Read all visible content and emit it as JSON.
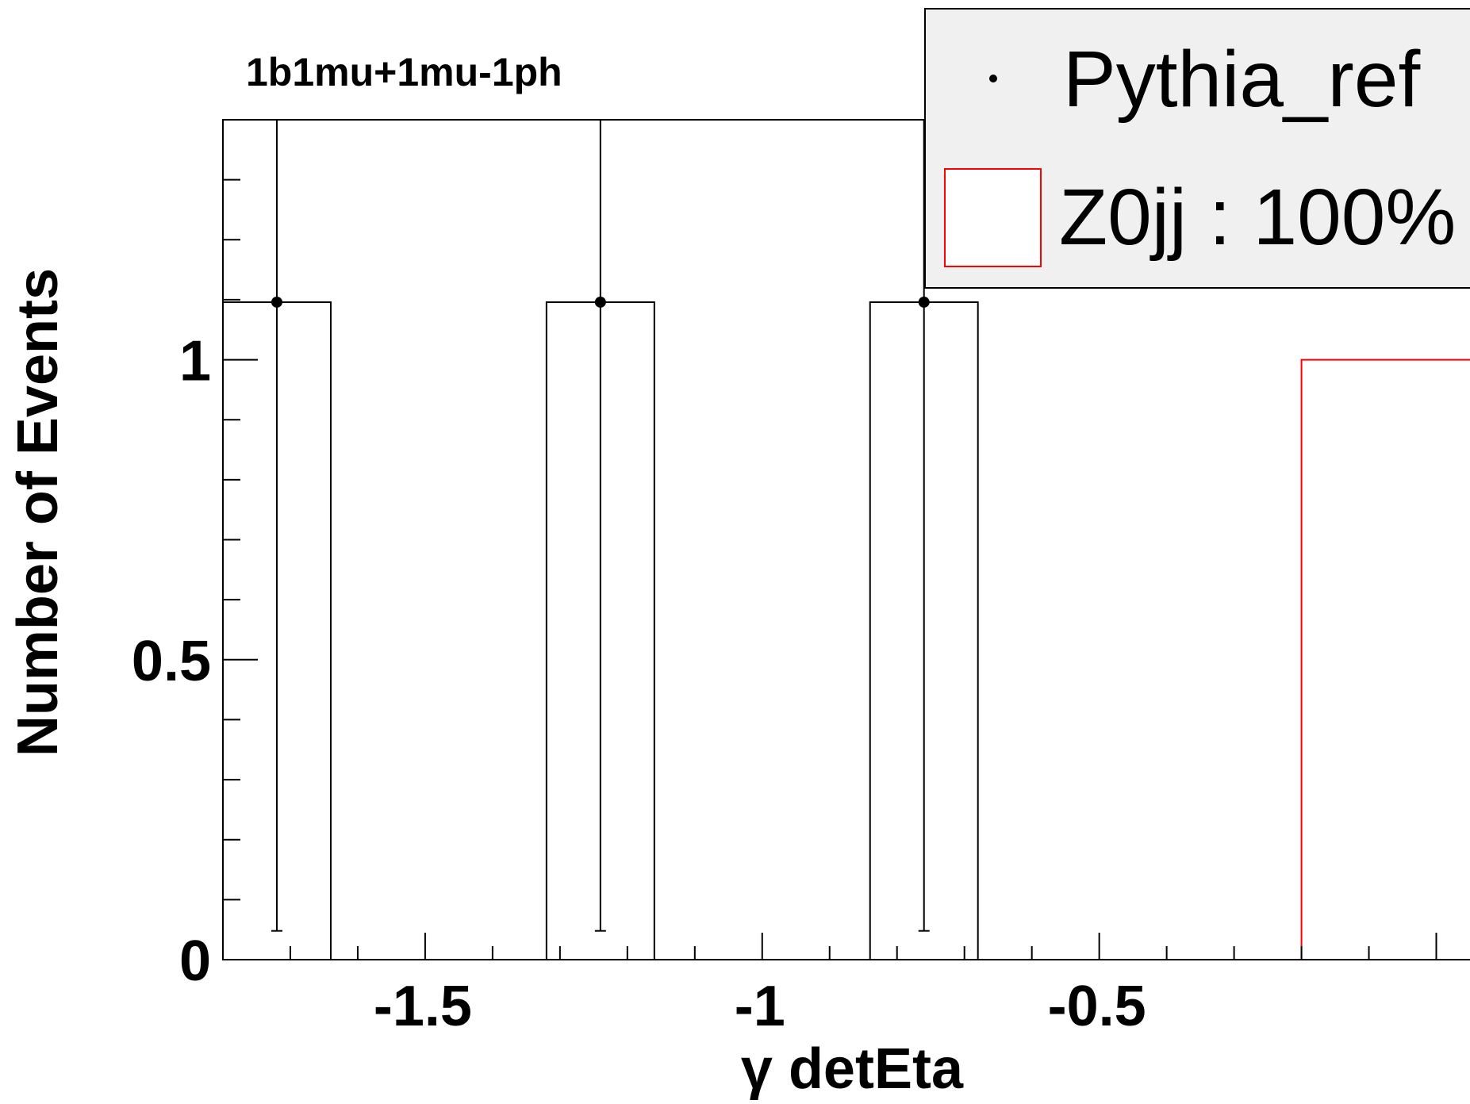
{
  "chart_data": {
    "type": "bar",
    "title": "1b1mu+1mu-1ph",
    "xlabel": "γ detEta",
    "ylabel": "Number of Events",
    "xlim": [
      -1.8,
      0.05
    ],
    "ylim": [
      0,
      1.4
    ],
    "x_ticks": [
      "-1.5",
      "-1",
      "-0.5"
    ],
    "y_ticks": [
      "0",
      "0.5",
      "1"
    ],
    "legend_position": "top-right",
    "series": [
      {
        "name": "Pythia_ref",
        "style": "points with error bars and outline bars",
        "color": "#000000",
        "bins": [
          {
            "low": -1.8,
            "high": -1.64,
            "center": -1.72,
            "value": 1.096,
            "err_low": 1.048,
            "err_high": 0.304
          },
          {
            "low": -1.32,
            "high": -1.16,
            "center": -1.24,
            "value": 1.096,
            "err_low": 1.048,
            "err_high": 0.304
          },
          {
            "low": -0.84,
            "high": -0.68,
            "center": -0.76,
            "value": 1.096,
            "err_low": 1.048,
            "err_high": 0.304
          }
        ]
      },
      {
        "name": "Z0jj : 100%",
        "style": "outline histogram",
        "color": "#ff0000",
        "bins": [
          {
            "low": -0.2,
            "high": 0.05,
            "value": 1.0
          }
        ]
      }
    ]
  }
}
